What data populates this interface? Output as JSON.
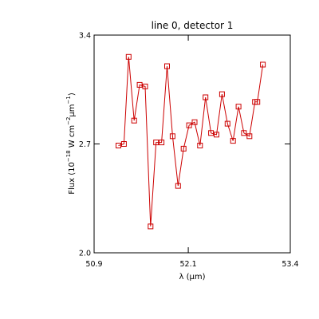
{
  "chart_data": {
    "type": "line",
    "title": "line 0, detector 1",
    "xlabel": {
      "prefix": "λ (",
      "unit": "μm",
      "suffix": ")"
    },
    "ylabel": {
      "prefix": "Flux (10",
      "exp1": "−18",
      "middle": " W cm",
      "exp2": "−2",
      "unit": "μm",
      "exp3": "−1",
      "suffix": ")"
    },
    "xlim": [
      50.9,
      53.4
    ],
    "ylim": [
      2.0,
      3.4
    ],
    "x_ticks": [
      {
        "value": 50.9,
        "label": "50.9"
      },
      {
        "value": 52.1,
        "label": "52.1"
      },
      {
        "value": 53.4,
        "label": "53.4"
      }
    ],
    "y_ticks": [
      {
        "value": 2.0,
        "label": "2.0"
      },
      {
        "value": 2.7,
        "label": "2.7"
      },
      {
        "value": 3.4,
        "label": "3.4"
      }
    ],
    "grid": false,
    "marker": "open-square",
    "colors": {
      "series": "#cc0000",
      "axes": "#000000",
      "background": "#ffffff"
    },
    "series": [
      {
        "x": [
          51.21,
          51.28,
          51.34,
          51.41,
          51.48,
          51.55,
          51.62,
          51.69,
          51.76,
          51.83,
          51.9,
          51.97,
          52.04,
          52.11,
          52.18,
          52.25,
          52.32,
          52.39,
          52.46,
          52.53,
          52.6,
          52.67,
          52.74,
          52.81,
          52.88,
          52.95,
          52.98,
          53.05
        ],
        "y": [
          2.69,
          2.7,
          3.26,
          2.85,
          3.08,
          3.07,
          2.17,
          2.71,
          2.71,
          3.2,
          2.75,
          2.43,
          2.67,
          2.82,
          2.84,
          2.69,
          3.0,
          2.77,
          2.76,
          3.02,
          2.83,
          2.72,
          2.94,
          2.77,
          2.75,
          2.97,
          2.97,
          3.21
        ]
      }
    ]
  }
}
